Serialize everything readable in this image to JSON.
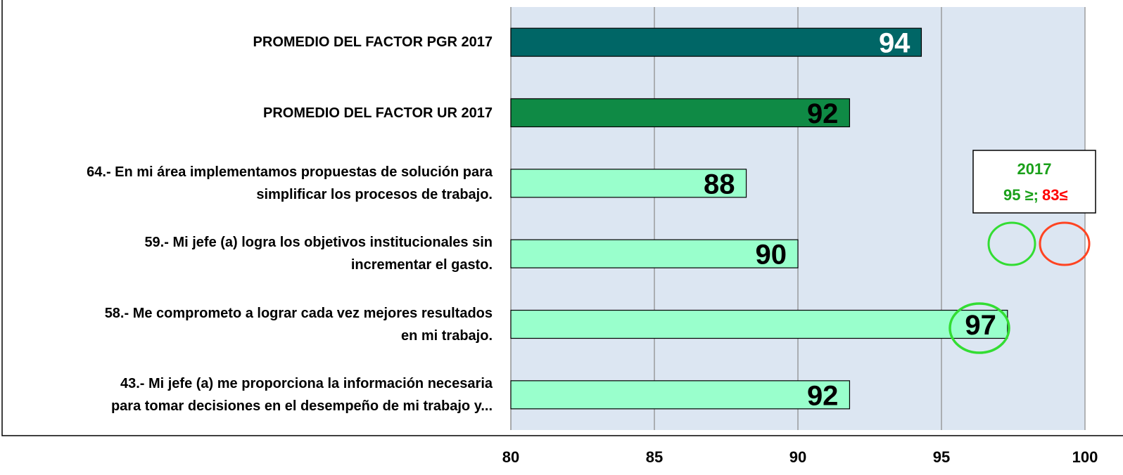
{
  "chart_data": {
    "type": "barh",
    "categories": [
      "PROMEDIO DEL FACTOR PGR 2017",
      "PROMEDIO DEL FACTOR UR 2017",
      "64.- En mi área implementamos propuestas de solución para\nsimplificar los procesos de trabajo.",
      "59.- Mi jefe (a) logra los objetivos institucionales sin\nincrementar el gasto.",
      "58.- Me comprometo a lograr cada vez mejores resultados\nen mi trabajo.",
      "43.- Mi jefe (a) me proporciona la información necesaria\npara tomar decisiones en el desempeño de mi trabajo y..."
    ],
    "values": [
      94.3,
      91.8,
      88.2,
      90.0,
      97.3,
      91.8
    ],
    "value_labels": [
      "94",
      "92",
      "88",
      "90",
      "97",
      "92"
    ],
    "colors": [
      "#006666",
      "#0f8a45",
      "#99ffcc",
      "#99ffcc",
      "#99ffcc",
      "#99ffcc"
    ],
    "label_colors": [
      "#ffffff",
      "#000000",
      "#000000",
      "#000000",
      "#000000",
      "#000000"
    ],
    "xlim": [
      80,
      100
    ],
    "xticks": [
      80,
      85,
      90,
      95,
      100
    ],
    "grid": true,
    "legend": {
      "title": "2017",
      "high": "95 ≥;",
      "high_color": "#1aa01a",
      "low": "83≤",
      "low_color": "#ff0000"
    }
  }
}
